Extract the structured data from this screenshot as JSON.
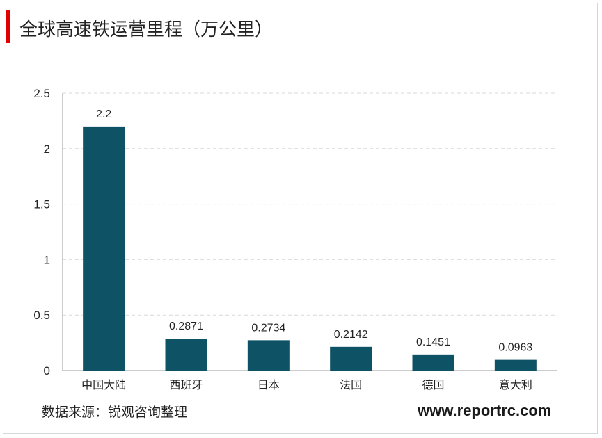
{
  "title": "全球高速铁运营里程（万公里）",
  "source": "数据来源：锐观咨询整理",
  "website": "www.reportrc.com",
  "colors": {
    "accent": "#e00000",
    "bar": "#0e5266",
    "grid": "#d9d9d9",
    "axis": "#9a9a9a"
  },
  "chart_data": {
    "type": "bar",
    "title": "全球高速铁运营里程（万公里）",
    "xlabel": "",
    "ylabel": "",
    "categories": [
      "中国大陆",
      "西班牙",
      "日本",
      "法国",
      "德国",
      "意大利"
    ],
    "values": [
      2.2,
      0.2871,
      0.2734,
      0.2142,
      0.1451,
      0.0963
    ],
    "data_labels": [
      "2.2",
      "0.2871",
      "0.2734",
      "0.2142",
      "0.1451",
      "0.0963"
    ],
    "ylim": [
      0,
      2.5
    ],
    "yticks": [
      "0",
      "0.5",
      "1",
      "1.5",
      "2",
      "2.5"
    ],
    "grid": true,
    "legend": "none"
  }
}
